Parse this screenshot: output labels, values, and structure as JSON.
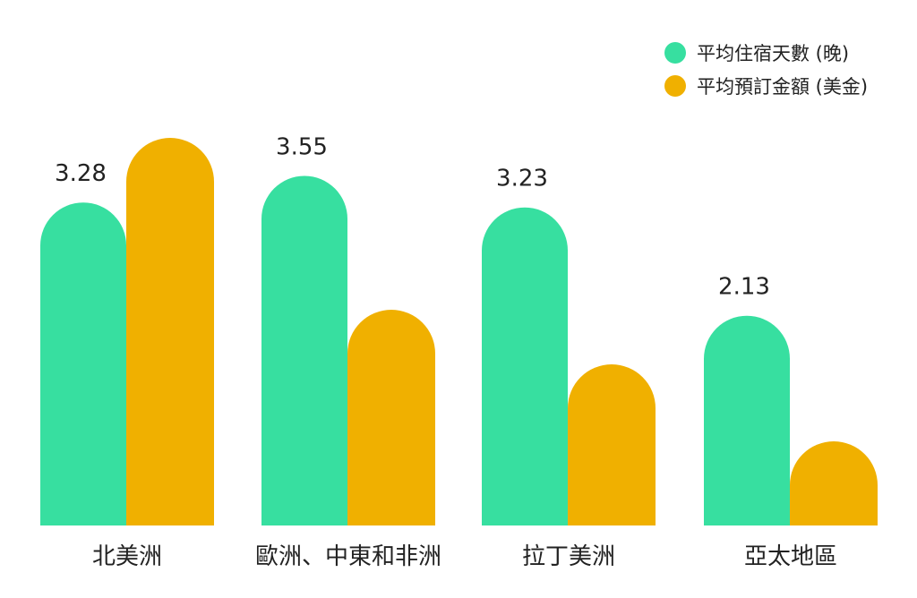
{
  "chart_data": {
    "type": "bar",
    "categories": [
      "北美洲",
      "歐洲、中東和非洲",
      "拉丁美洲",
      "亞太地區"
    ],
    "series": [
      {
        "name": "平均住宿天數 (晚)",
        "color": "#37DFA0",
        "values": [
          3.28,
          3.55,
          3.23,
          2.13
        ],
        "data_labels": [
          "3.28",
          "3.55",
          "3.23",
          "2.13"
        ]
      },
      {
        "name": "平均預訂金額 (美金)",
        "color": "#F0B000",
        "values": [
          null,
          null,
          null,
          null
        ]
      }
    ],
    "legend_position": "top-right",
    "grid": false
  }
}
